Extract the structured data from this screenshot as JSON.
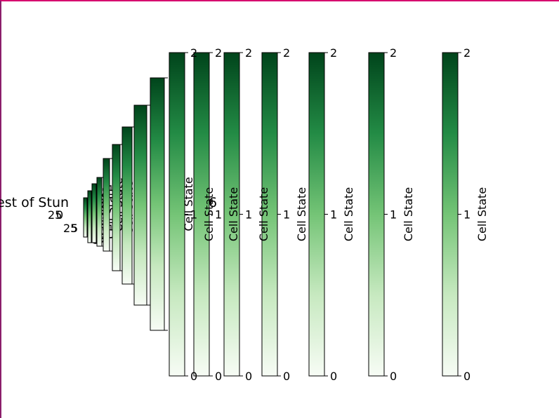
{
  "chart_data": {
    "type": "heatmap",
    "title": "est of Stun",
    "title_fragment_right": "6",
    "colormap": "Greens",
    "colors": {
      "low": "#f7fcf5",
      "mid": "#74c476",
      "high": "#00441b"
    },
    "colorbar_label": "Cell State",
    "colorbars": [
      {
        "vmin": 0,
        "vmax": 2,
        "ticks": [
          0,
          2
        ]
      },
      {
        "vmin": 0,
        "vmax": 2,
        "ticks": [
          0,
          2
        ]
      },
      {
        "vmin": 0,
        "vmax": 2,
        "ticks": [
          0,
          2
        ]
      },
      {
        "vmin": 0,
        "vmax": 2,
        "ticks": [
          0,
          2
        ]
      },
      {
        "vmin": 0,
        "vmax": 2,
        "ticks": [
          0,
          2
        ]
      },
      {
        "vmin": 0,
        "vmax": 2,
        "ticks": [
          0,
          2
        ]
      },
      {
        "vmin": 0,
        "vmax": 2,
        "ticks": [
          0,
          2
        ]
      },
      {
        "vmin": 0,
        "vmax": 2,
        "ticks": [
          0,
          2
        ]
      },
      {
        "vmin": 0,
        "vmax": 2,
        "ticks": [
          0,
          1,
          2
        ]
      },
      {
        "vmin": 0,
        "vmax": 2,
        "ticks": [
          0,
          1,
          2
        ]
      },
      {
        "vmin": 0,
        "vmax": 2,
        "ticks": [
          0,
          1,
          2
        ]
      },
      {
        "vmin": 0,
        "vmax": 2,
        "ticks": [
          0,
          1,
          2
        ]
      },
      {
        "vmin": 0,
        "vmax": 2,
        "ticks": [
          0,
          1,
          2
        ]
      },
      {
        "vmin": 0,
        "vmax": 2,
        "ticks": [
          0,
          1,
          2
        ]
      },
      {
        "vmin": 0,
        "vmax": 2,
        "ticks": [
          0,
          1,
          2
        ]
      },
      {
        "vmin": 0,
        "vmax": 1,
        "ticks": [
          0,
          1
        ]
      }
    ],
    "axis_tick_labels": [
      "25",
      "0",
      "25",
      "5"
    ]
  }
}
